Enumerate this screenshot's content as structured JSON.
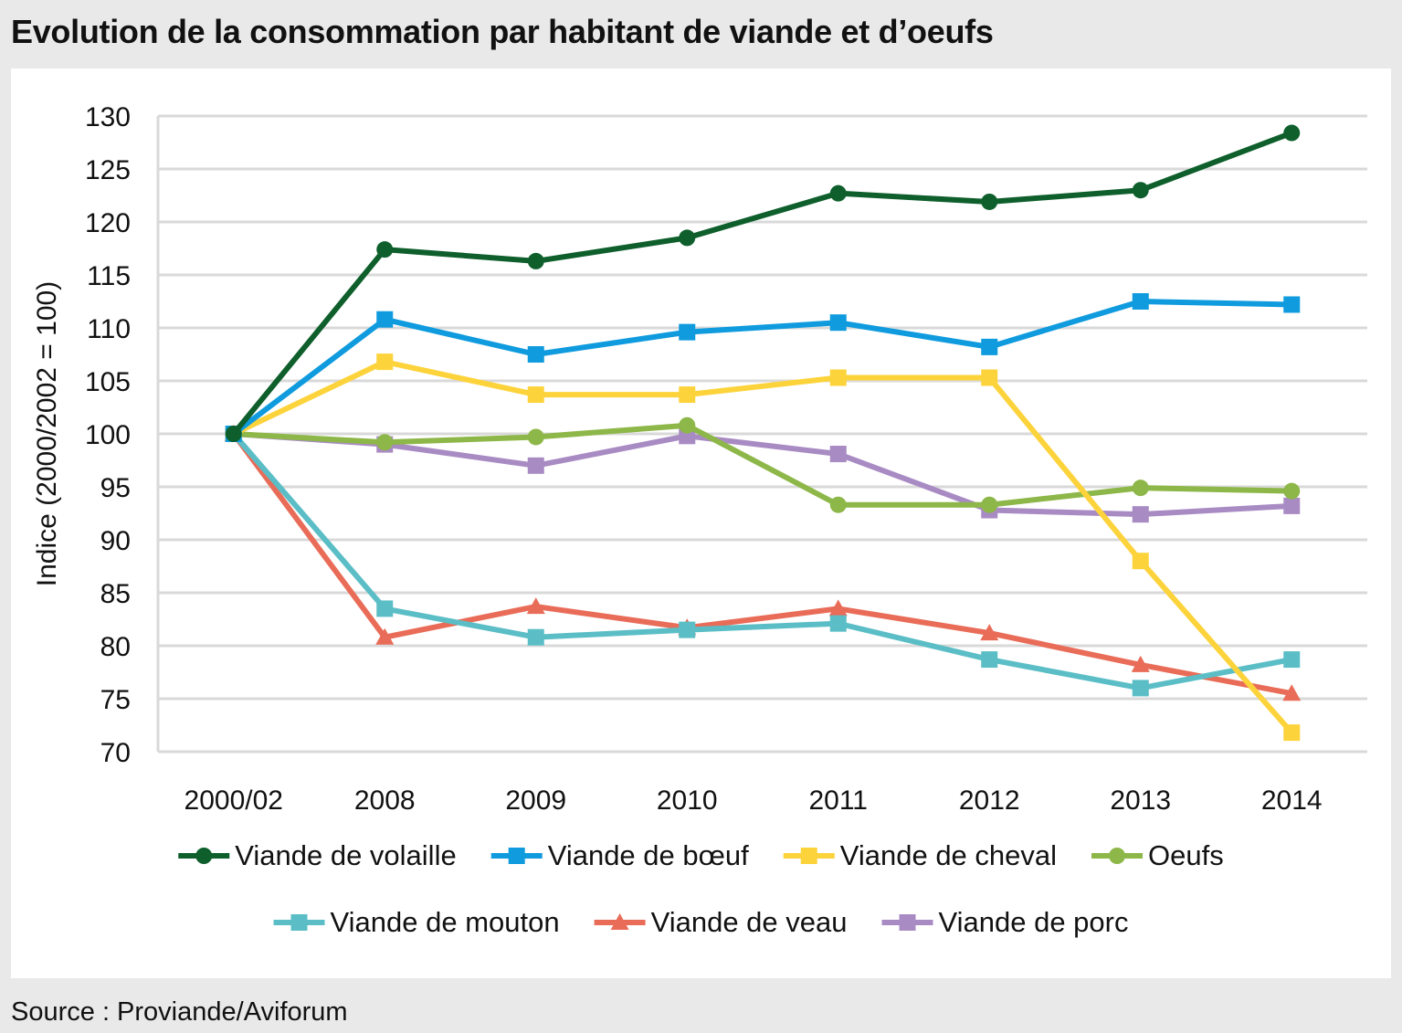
{
  "title": "Evolution de la consommation par habitant de viande et d’oeufs",
  "source": "Source : Proviande/Aviforum",
  "chart_data": {
    "type": "line",
    "title": "Evolution de la consommation par habitant de viande et d’oeufs",
    "xlabel": "",
    "ylabel": "Indice (2000/2002 = 100)",
    "ylim": [
      70,
      130
    ],
    "ytick_step": 5,
    "grid": true,
    "legend_position": "bottom",
    "categories": [
      "2000/02",
      "2008",
      "2009",
      "2010",
      "2011",
      "2012",
      "2013",
      "2014"
    ],
    "series": [
      {
        "name": "Viande de volaille",
        "color": "#0e5f2c",
        "marker": "circle",
        "values": [
          100,
          117.4,
          116.3,
          118.5,
          122.7,
          121.9,
          123.0,
          128.4
        ]
      },
      {
        "name": "Viande de bœuf",
        "color": "#0f9bde",
        "marker": "square",
        "values": [
          100,
          110.8,
          107.5,
          109.6,
          110.5,
          108.2,
          112.5,
          112.2
        ]
      },
      {
        "name": "Viande de cheval",
        "color": "#fdd33b",
        "marker": "square",
        "values": [
          100,
          106.8,
          103.7,
          103.7,
          105.3,
          105.3,
          88.0,
          71.8
        ]
      },
      {
        "name": "Oeufs",
        "color": "#8db748",
        "marker": "circle",
        "values": [
          100,
          99.2,
          99.7,
          100.8,
          93.3,
          93.3,
          94.9,
          94.6
        ]
      },
      {
        "name": "Viande de mouton",
        "color": "#5bbec6",
        "marker": "square",
        "values": [
          100,
          83.5,
          80.8,
          81.5,
          82.1,
          78.7,
          76.0,
          78.7
        ]
      },
      {
        "name": "Viande de veau",
        "color": "#e96c58",
        "marker": "triangle",
        "values": [
          100,
          80.8,
          83.7,
          81.7,
          83.5,
          81.2,
          78.2,
          75.5
        ]
      },
      {
        "name": "Viande de porc",
        "color": "#a98bc4",
        "marker": "square",
        "values": [
          100,
          99.0,
          97.0,
          99.8,
          98.1,
          92.8,
          92.4,
          93.2
        ]
      }
    ]
  }
}
